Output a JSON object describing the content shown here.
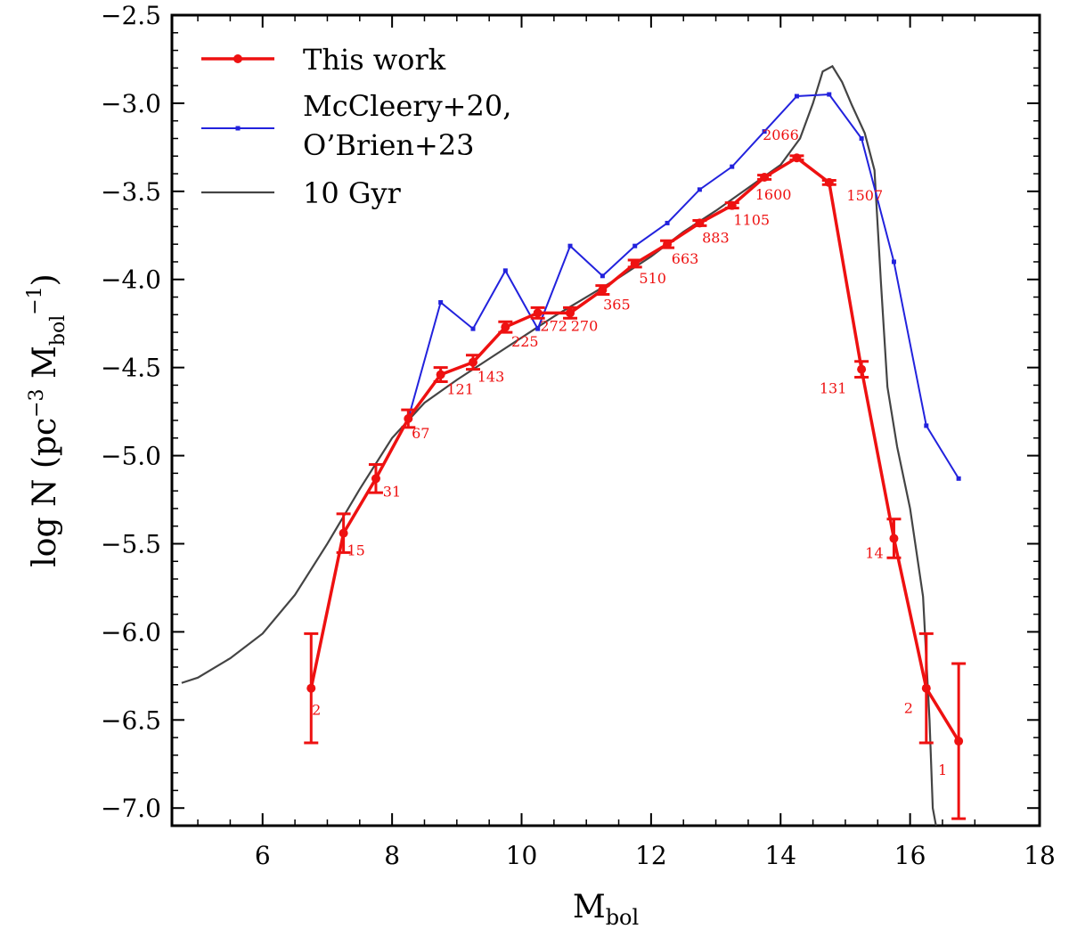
{
  "chart_data": {
    "type": "line",
    "xlabel": "M",
    "xlabel_sub": "bol",
    "ylabel_text": "log N (pc",
    "ylabel_exp": "−3",
    "ylabel_unit": "M",
    "ylabel_unit_sub": "bol",
    "ylabel_unit_exp": "−1",
    "xlim": [
      4.6,
      18
    ],
    "ylim": [
      -7.1,
      -2.5
    ],
    "xticks": [
      6,
      8,
      10,
      12,
      14,
      16,
      18
    ],
    "yticks": [
      -7.0,
      -6.5,
      -6.0,
      -5.5,
      -5.0,
      -4.5,
      -4.0,
      -3.5,
      -3.0,
      -2.5
    ],
    "ytick_labels": [
      "−7.0",
      "−6.5",
      "−6.0",
      "−5.5",
      "−5.0",
      "−4.5",
      "−4.0",
      "−3.5",
      "−3.0",
      "−2.5"
    ],
    "legend_position": "top-left",
    "colors": {
      "this_work": "#ee1111",
      "mccleery": "#2222dd",
      "model": "#444444"
    },
    "series": [
      {
        "key": "this_work",
        "legend": "This work",
        "x": [
          6.75,
          7.25,
          7.75,
          8.25,
          8.75,
          9.25,
          9.75,
          10.25,
          10.75,
          11.25,
          11.75,
          12.25,
          12.75,
          13.25,
          13.75,
          14.25,
          14.75,
          15.25,
          15.75,
          16.25,
          16.75
        ],
        "y": [
          -6.32,
          -5.44,
          -5.13,
          -4.79,
          -4.54,
          -4.47,
          -4.27,
          -4.19,
          -4.19,
          -4.06,
          -3.91,
          -3.8,
          -3.68,
          -3.58,
          -3.42,
          -3.31,
          -3.45,
          -4.51,
          -5.47,
          -6.32,
          -6.62
        ],
        "err": [
          0.31,
          0.11,
          0.08,
          0.05,
          0.04,
          0.04,
          0.03,
          0.03,
          0.03,
          0.025,
          0.02,
          0.02,
          0.015,
          0.015,
          0.012,
          0.012,
          0.012,
          0.045,
          0.11,
          0.31,
          0.44
        ],
        "counts": [
          "2",
          "15",
          "31",
          "67",
          "121",
          "143",
          "225",
          "272",
          "270",
          "365",
          "510",
          "663",
          "883",
          "1105",
          "1600",
          "2066",
          "1507",
          "131",
          "14",
          "2",
          "1"
        ]
      },
      {
        "key": "mccleery",
        "legend_lines": [
          "McCleery+20,",
          "O’Brien+23"
        ],
        "x": [
          8.25,
          8.75,
          9.25,
          9.75,
          10.25,
          10.75,
          11.25,
          11.75,
          12.25,
          12.75,
          13.25,
          13.75,
          14.25,
          14.75,
          15.25,
          15.75,
          16.25,
          16.75
        ],
        "y": [
          -4.79,
          -4.13,
          -4.28,
          -3.95,
          -4.28,
          -3.81,
          -3.98,
          -3.81,
          -3.68,
          -3.49,
          -3.36,
          -3.16,
          -2.96,
          -2.95,
          -3.2,
          -3.9,
          -4.83,
          -5.13
        ]
      },
      {
        "key": "model",
        "legend": "10 Gyr",
        "x": [
          4.75,
          5.0,
          5.5,
          6.0,
          6.5,
          7.0,
          7.5,
          8.0,
          8.5,
          9.0,
          9.5,
          10.0,
          10.5,
          11.0,
          11.5,
          12.0,
          12.5,
          13.0,
          13.5,
          14.0,
          14.3,
          14.5,
          14.65,
          14.8,
          14.95,
          15.1,
          15.3,
          15.45,
          15.55,
          15.65,
          15.8,
          16.0,
          16.2,
          16.3,
          16.35,
          16.4
        ],
        "y": [
          -6.29,
          -6.26,
          -6.15,
          -6.01,
          -5.79,
          -5.5,
          -5.19,
          -4.9,
          -4.7,
          -4.57,
          -4.45,
          -4.33,
          -4.21,
          -4.1,
          -3.99,
          -3.87,
          -3.73,
          -3.61,
          -3.48,
          -3.35,
          -3.2,
          -3.0,
          -2.82,
          -2.79,
          -2.88,
          -3.01,
          -3.17,
          -3.38,
          -4.02,
          -4.61,
          -4.95,
          -5.3,
          -5.8,
          -6.5,
          -7.0,
          -7.1
        ]
      }
    ]
  }
}
